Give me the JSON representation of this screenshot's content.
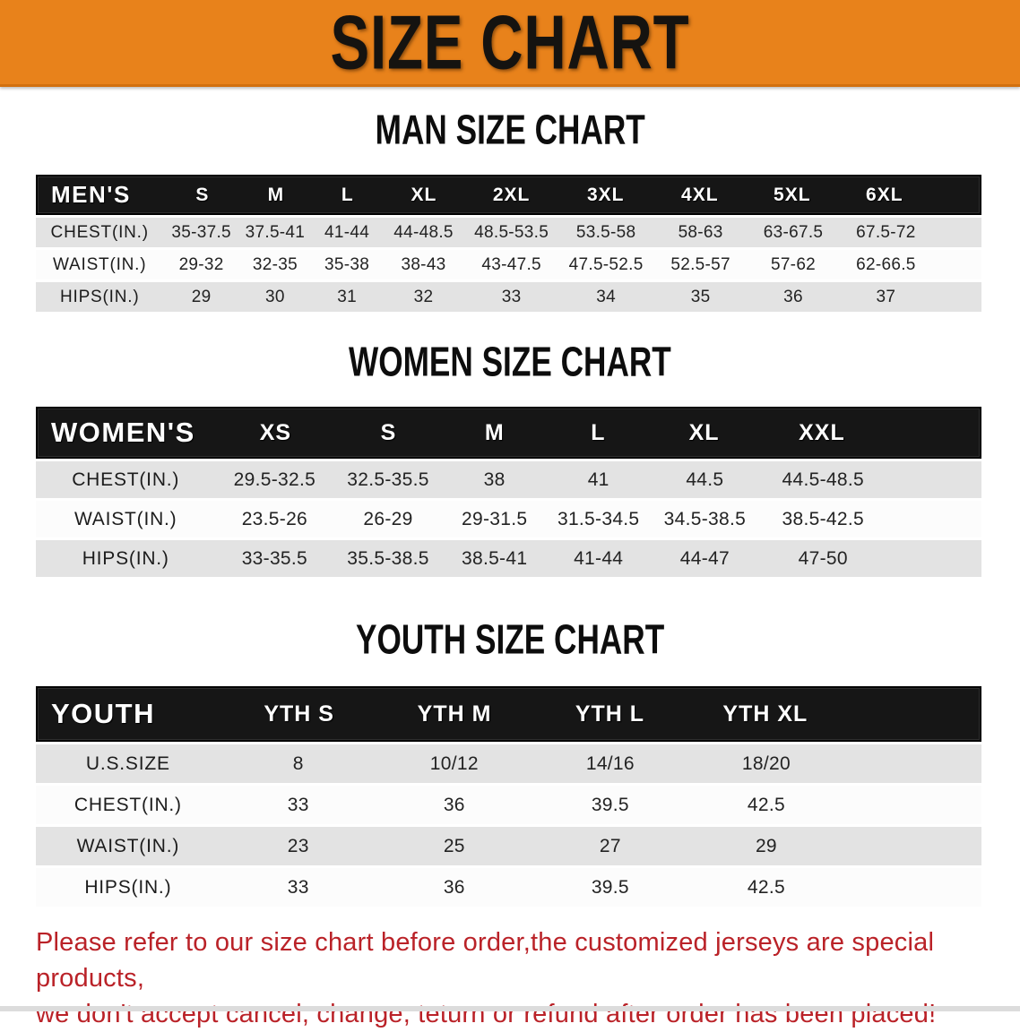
{
  "banner": {
    "title": "SIZE CHART"
  },
  "colors": {
    "banner_bg": "#e8821b",
    "header_bar": "#161616",
    "row_gray": "#e3e3e3",
    "row_white": "#fcfcfc",
    "disclaimer_red": "#ba2228",
    "title_black": "#0d0d0d"
  },
  "sections": [
    {
      "id": "men",
      "title": "MAN SIZE CHART",
      "header_label": "MEN'S",
      "columns": [
        "S",
        "M",
        "L",
        "XL",
        "2XL",
        "3XL",
        "4XL",
        "5XL",
        "6XL"
      ],
      "rows": [
        {
          "label": "CHEST(IN.)",
          "values": [
            "35-37.5",
            "37.5-41",
            "41-44",
            "44-48.5",
            "48.5-53.5",
            "53.5-58",
            "58-63",
            "63-67.5",
            "67.5-72"
          ]
        },
        {
          "label": "WAIST(IN.)",
          "values": [
            "29-32",
            "32-35",
            "35-38",
            "38-43",
            "43-47.5",
            "47.5-52.5",
            "52.5-57",
            "57-62",
            "62-66.5"
          ]
        },
        {
          "label": "HIPS(IN.)",
          "values": [
            "29",
            "30",
            "31",
            "32",
            "33",
            "34",
            "35",
            "36",
            "37"
          ]
        }
      ]
    },
    {
      "id": "women",
      "title": "WOMEN SIZE CHART",
      "header_label": "WOMEN'S",
      "columns": [
        "XS",
        "S",
        "M",
        "L",
        "XL",
        "XXL"
      ],
      "rows": [
        {
          "label": "CHEST(IN.)",
          "values": [
            "29.5-32.5",
            "32.5-35.5",
            "38",
            "41",
            "44.5",
            "44.5-48.5"
          ]
        },
        {
          "label": "WAIST(IN.)",
          "values": [
            "23.5-26",
            "26-29",
            "29-31.5",
            "31.5-34.5",
            "34.5-38.5",
            "38.5-42.5"
          ]
        },
        {
          "label": "HIPS(IN.)",
          "values": [
            "33-35.5",
            "35.5-38.5",
            "38.5-41",
            "41-44",
            "44-47",
            "47-50"
          ]
        }
      ]
    },
    {
      "id": "youth",
      "title": "YOUTH SIZE CHART",
      "header_label": "YOUTH",
      "columns": [
        "YTH S",
        "YTH M",
        "YTH L",
        "YTH XL"
      ],
      "rows": [
        {
          "label": "U.S.SIZE",
          "values": [
            "8",
            "10/12",
            "14/16",
            "18/20"
          ]
        },
        {
          "label": "CHEST(IN.)",
          "values": [
            "33",
            "36",
            "39.5",
            "42.5"
          ]
        },
        {
          "label": "WAIST(IN.)",
          "values": [
            "23",
            "25",
            "27",
            "29"
          ]
        },
        {
          "label": "HIPS(IN.)",
          "values": [
            "33",
            "36",
            "39.5",
            "42.5"
          ]
        }
      ]
    }
  ],
  "disclaimer": {
    "line1": "Please refer to our size chart before order,the customized jerseys are special products,",
    "line2": "we don't accept cancel, change, teturn or refund after order has been placed!"
  }
}
